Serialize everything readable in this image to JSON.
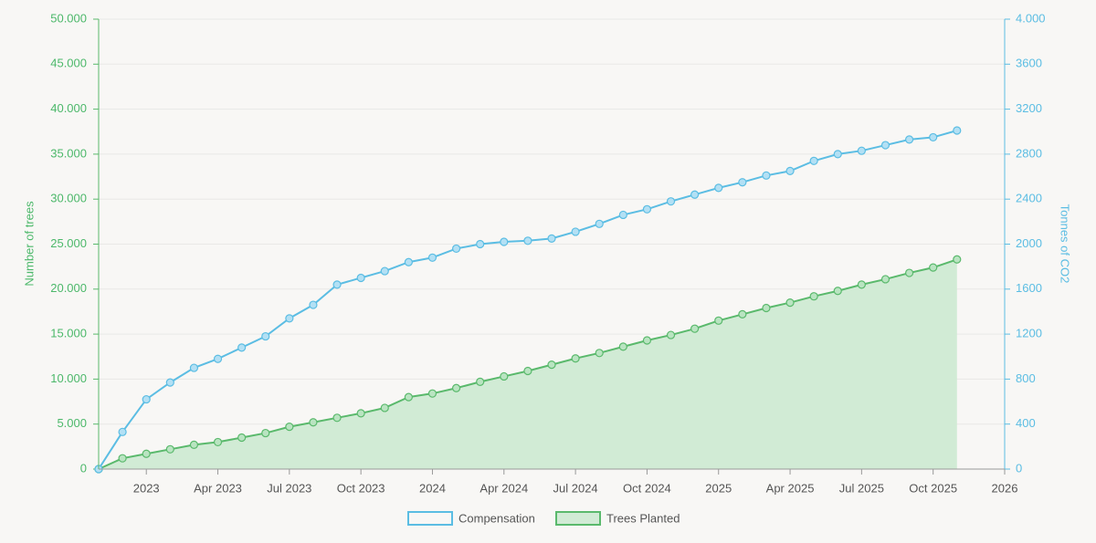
{
  "chart_data": {
    "type": "line",
    "x": [
      "2022-11",
      "2022-12",
      "2023-01",
      "2023-02",
      "2023-03",
      "2023-04",
      "2023-05",
      "2023-06",
      "2023-07",
      "2023-08",
      "2023-09",
      "2023-10",
      "2023-11",
      "2023-12",
      "2024-01",
      "2024-02",
      "2024-03",
      "2024-04",
      "2024-05",
      "2024-06",
      "2024-07",
      "2024-08",
      "2024-09",
      "2024-10",
      "2024-11",
      "2024-12",
      "2025-01",
      "2025-02",
      "2025-03",
      "2025-04",
      "2025-05",
      "2025-06",
      "2025-07",
      "2025-08",
      "2025-09",
      "2025-10",
      "2025-11"
    ],
    "series": [
      {
        "name": "Compensation",
        "color": "#5bbde3",
        "marker_fill": "#b3e0f4",
        "axis": "y2",
        "values": [
          0,
          330,
          620,
          770,
          900,
          980,
          1080,
          1180,
          1340,
          1460,
          1640,
          1700,
          1760,
          1840,
          1880,
          1960,
          2000,
          2020,
          2030,
          2050,
          2110,
          2180,
          2260,
          2310,
          2380,
          2440,
          2500,
          2550,
          2610,
          2650,
          2740,
          2800,
          2830,
          2880,
          2930,
          2950,
          3010
        ]
      },
      {
        "name": "Trees Planted",
        "color": "#5ab96c",
        "marker_fill": "#b9e4c1",
        "fill_color": "#d1ebd5",
        "values": [
          0,
          1200,
          1700,
          2200,
          2700,
          3000,
          3500,
          4000,
          4700,
          5200,
          5700,
          6200,
          6800,
          8000,
          8400,
          9000,
          9700,
          10300,
          10900,
          11600,
          12300,
          12900,
          13600,
          14300,
          14900,
          15600,
          16500,
          17200,
          17900,
          18500,
          19200,
          19800,
          20500,
          21100,
          21800,
          22400,
          23300
        ]
      }
    ],
    "xlim": [
      "2022-11",
      "2026-01"
    ],
    "xticks": [
      {
        "value": "2023-01",
        "label": "2023"
      },
      {
        "value": "2023-04",
        "label": "Apr 2023"
      },
      {
        "value": "2023-07",
        "label": "Jul 2023"
      },
      {
        "value": "2023-10",
        "label": "Oct 2023"
      },
      {
        "value": "2024-01",
        "label": "2024"
      },
      {
        "value": "2024-04",
        "label": "Apr 2024"
      },
      {
        "value": "2024-07",
        "label": "Jul 2024"
      },
      {
        "value": "2024-10",
        "label": "Oct 2024"
      },
      {
        "value": "2025-01",
        "label": "2025"
      },
      {
        "value": "2025-04",
        "label": "Apr 2025"
      },
      {
        "value": "2025-07",
        "label": "Jul 2025"
      },
      {
        "value": "2025-10",
        "label": "Oct 2025"
      },
      {
        "value": "2026-01",
        "label": "2026"
      }
    ],
    "ylabel": "Number of trees",
    "ylim": [
      0,
      50000
    ],
    "yticks": [
      0,
      {
        "value": 5000,
        "label": "5.000"
      },
      {
        "value": 10000,
        "label": "10.000"
      },
      {
        "value": 15000,
        "label": "15.000"
      },
      {
        "value": 20000,
        "label": "20.000"
      },
      {
        "value": 25000,
        "label": "25.000"
      },
      {
        "value": 30000,
        "label": "30.000"
      },
      {
        "value": 35000,
        "label": "35.000"
      },
      {
        "value": 40000,
        "label": "40.000"
      },
      {
        "value": 45000,
        "label": "45.000"
      },
      {
        "value": 50000,
        "label": "50.000"
      }
    ],
    "y2label": "Tonnes of CO2",
    "y2lim": [
      0,
      4000
    ],
    "y2ticks": [
      0,
      400,
      800,
      1200,
      1600,
      2000,
      2400,
      2800,
      3200,
      3600,
      {
        "value": 4000,
        "label": "4.000"
      }
    ],
    "grid": true,
    "legend": "bottom"
  }
}
